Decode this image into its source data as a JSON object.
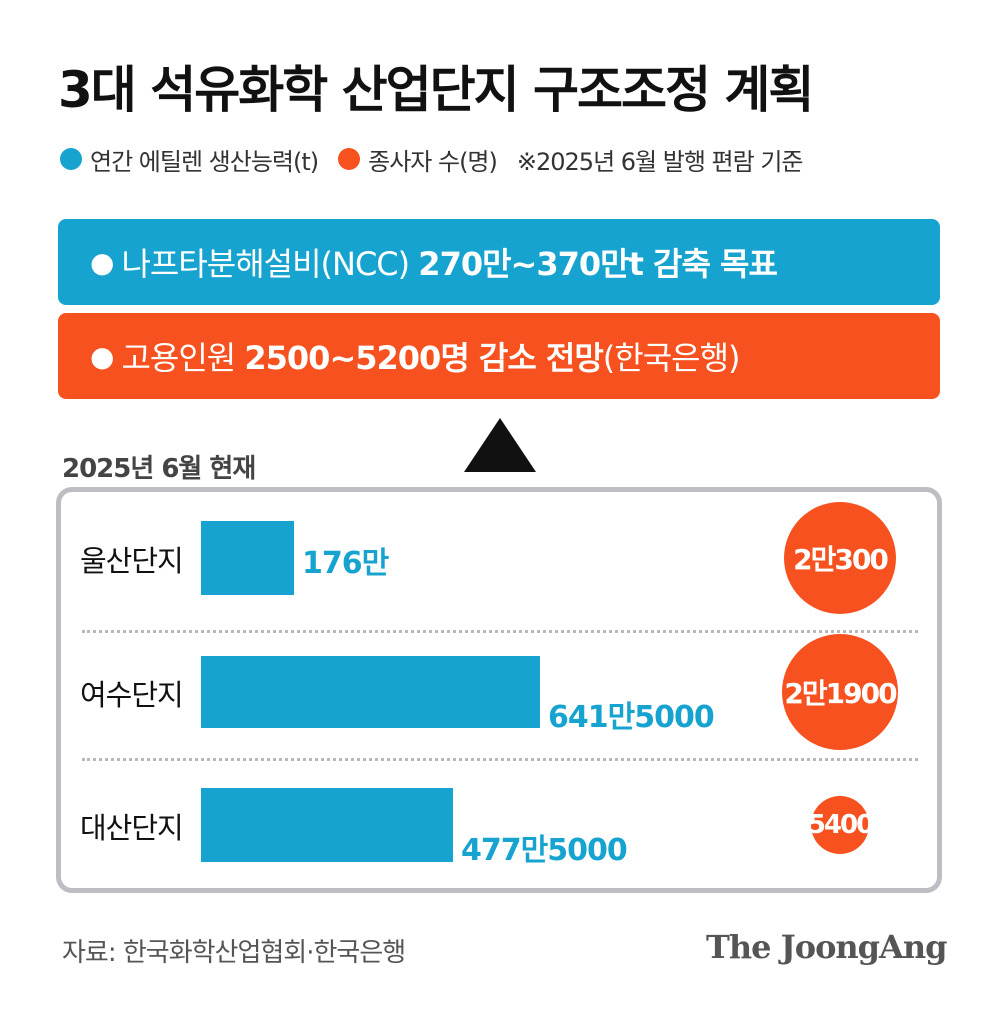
{
  "title": "3대 석유화학 산업단지 구조조정 계획",
  "legend": {
    "items": [
      {
        "label": "연간 에틸렌 생산능력(t)",
        "color": "#17a3cf"
      },
      {
        "label": "종사자 수(명)",
        "color": "#f7511f"
      }
    ],
    "note": "※2025년 6월 발행 편람 기준"
  },
  "banners": [
    {
      "bullet": "●",
      "text": "나프타분해설비(NCC) ",
      "bold": "270만~370만t 감축 목표",
      "suffix": "",
      "color": "#17a3cf"
    },
    {
      "bullet": "●",
      "text": "고용인원 ",
      "bold": "2500~5200명 감소 전망",
      "suffix": "(한국은행)",
      "color": "#f7511f"
    }
  ],
  "as_of": "2025년 6월 현재",
  "chart_data": {
    "type": "bar",
    "orientation": "horizontal",
    "categories": [
      "울산단지",
      "여수단지",
      "대산단지"
    ],
    "series": [
      {
        "name": "연간 에틸렌 생산능력(t)",
        "values": [
          1760000,
          6415000,
          4775000
        ],
        "labels": [
          "176만",
          "641만5000",
          "477만5000"
        ],
        "color": "#17a3cf"
      },
      {
        "name": "종사자 수(명)",
        "values": [
          20300,
          21900,
          5400
        ],
        "labels": [
          "2만300",
          "2만1900",
          "5400"
        ],
        "color": "#f7511f",
        "mark": "circle"
      }
    ]
  },
  "source": "자료: 한국화학산업협회·한국은행",
  "brand": "The JoongAng"
}
